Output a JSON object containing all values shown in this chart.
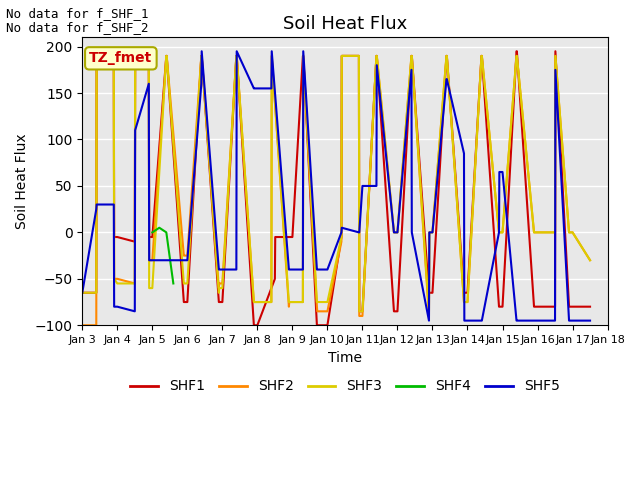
{
  "title": "Soil Heat Flux",
  "ylabel": "Soil Heat Flux",
  "xlabel": "Time",
  "ylim": [
    -100,
    210
  ],
  "yticks": [
    -100,
    -50,
    0,
    50,
    100,
    150,
    200
  ],
  "bg_color": "#e8e8e8",
  "annotations": [
    "No data for f_SHF_1",
    "No data for f_SHF_2"
  ],
  "legend_label": "TZ_fmet",
  "series": {
    "SHF1": {
      "color": "#cc0000",
      "x": [
        3.0,
        3.4,
        3.41,
        3.9,
        3.91,
        4.0,
        4.5,
        4.51,
        4.9,
        4.91,
        5.0,
        5.4,
        5.41,
        5.9,
        5.91,
        6.0,
        6.4,
        6.41,
        6.9,
        6.91,
        7.0,
        7.4,
        7.41,
        7.9,
        7.91,
        8.0,
        8.5,
        8.51,
        8.9,
        8.91,
        9.0,
        9.3,
        9.31,
        9.7,
        9.71,
        10.0,
        10.4,
        10.41,
        10.9,
        10.91,
        11.0,
        11.4,
        11.41,
        11.9,
        11.91,
        12.0,
        12.4,
        12.41,
        12.9,
        12.91,
        13.0,
        13.4,
        13.41,
        13.9,
        13.91,
        14.0,
        14.4,
        14.41,
        14.9,
        14.91,
        15.0,
        15.4,
        15.41,
        15.9,
        15.91,
        16.0,
        16.5,
        16.51,
        16.9,
        16.91,
        17.0,
        17.5
      ],
      "y": [
        -65,
        -65,
        190,
        190,
        -5,
        -5,
        -10,
        190,
        190,
        -5,
        -5,
        190,
        190,
        -75,
        -75,
        -75,
        190,
        190,
        -75,
        -75,
        -75,
        190,
        190,
        -100,
        -100,
        -100,
        -50,
        -5,
        -5,
        -5,
        -5,
        190,
        190,
        -100,
        -100,
        -100,
        -5,
        190,
        190,
        -85,
        -85,
        190,
        190,
        -85,
        -85,
        -85,
        190,
        190,
        -65,
        -65,
        -65,
        190,
        190,
        -65,
        -65,
        -65,
        190,
        190,
        -80,
        -80,
        -80,
        195,
        195,
        -80,
        -80,
        -80,
        -80,
        195,
        -80,
        -80,
        -80,
        -80
      ]
    },
    "SHF2": {
      "color": "#ff8800",
      "x": [
        3.0,
        3.4,
        3.41,
        3.9,
        3.91,
        4.0,
        4.5,
        4.51,
        4.9,
        4.91,
        5.0,
        5.4,
        5.41,
        5.9,
        5.91,
        6.0,
        6.4,
        6.41,
        6.9,
        6.91,
        7.0,
        7.4,
        7.41,
        7.9,
        7.91,
        8.0,
        8.4,
        8.41,
        8.9,
        8.91,
        9.0,
        9.3,
        9.31,
        9.7,
        9.71,
        10.0,
        10.4,
        10.41,
        10.9,
        10.91,
        11.0,
        11.4,
        11.41,
        11.9,
        11.91,
        12.0,
        12.4,
        12.41,
        12.9,
        12.91,
        13.0,
        13.4,
        13.41,
        13.9,
        13.91,
        14.0,
        14.4,
        14.41,
        14.9,
        14.91,
        15.0,
        15.4,
        15.41,
        15.9,
        15.91,
        16.0,
        16.5,
        16.51,
        16.9,
        16.91,
        17.0,
        17.5
      ],
      "y": [
        -100,
        -100,
        190,
        190,
        -50,
        -50,
        -55,
        190,
        190,
        -30,
        -30,
        190,
        190,
        -25,
        -25,
        -25,
        190,
        190,
        -60,
        -55,
        -55,
        190,
        190,
        -75,
        -75,
        -75,
        -75,
        190,
        -80,
        -75,
        -75,
        -75,
        190,
        -80,
        -85,
        -85,
        -10,
        190,
        190,
        -90,
        -90,
        190,
        190,
        0,
        0,
        0,
        190,
        190,
        -90,
        0,
        0,
        190,
        190,
        -75,
        -75,
        -75,
        190,
        190,
        0,
        0,
        0,
        190,
        190,
        0,
        0,
        0,
        0,
        190,
        0,
        0,
        0,
        -30
      ]
    },
    "SHF3": {
      "color": "#ddcc00",
      "x": [
        3.0,
        3.4,
        3.41,
        3.9,
        3.91,
        4.0,
        4.5,
        4.51,
        4.9,
        4.91,
        5.0,
        5.4,
        5.41,
        5.9,
        5.91,
        6.0,
        6.4,
        6.41,
        6.9,
        6.91,
        7.0,
        7.4,
        7.41,
        7.9,
        7.91,
        8.0,
        8.4,
        8.41,
        8.9,
        8.91,
        9.0,
        9.3,
        9.31,
        9.7,
        9.71,
        10.0,
        10.4,
        10.41,
        10.9,
        10.91,
        11.0,
        11.4,
        11.41,
        11.9,
        11.91,
        12.0,
        12.4,
        12.41,
        12.9,
        12.91,
        13.0,
        13.4,
        13.41,
        13.9,
        13.91,
        14.0,
        14.4,
        14.41,
        14.9,
        14.91,
        15.0,
        15.4,
        15.41,
        15.9,
        15.91,
        16.0,
        16.5,
        16.51,
        16.9,
        16.91,
        17.0,
        17.5
      ],
      "y": [
        -65,
        -65,
        190,
        190,
        -50,
        -55,
        -55,
        190,
        190,
        -60,
        -60,
        190,
        190,
        -55,
        -55,
        -55,
        190,
        190,
        -65,
        -60,
        -60,
        190,
        190,
        -75,
        -75,
        -75,
        -75,
        190,
        -75,
        -75,
        -75,
        -75,
        190,
        -75,
        -75,
        -75,
        -5,
        190,
        190,
        -85,
        -85,
        190,
        190,
        0,
        0,
        0,
        190,
        190,
        -85,
        0,
        0,
        190,
        190,
        -75,
        -75,
        -75,
        190,
        190,
        0,
        0,
        0,
        190,
        190,
        0,
        0,
        0,
        0,
        190,
        0,
        0,
        0,
        -30
      ]
    },
    "SHF4": {
      "color": "#00bb00",
      "x": [
        5.0,
        5.2,
        5.4,
        5.6
      ],
      "y": [
        0,
        5,
        0,
        -55
      ]
    },
    "SHF5": {
      "color": "#0000cc",
      "x": [
        3.0,
        3.4,
        3.41,
        3.9,
        3.91,
        4.0,
        4.5,
        4.51,
        4.9,
        4.91,
        5.0,
        5.4,
        5.41,
        5.9,
        5.91,
        6.0,
        6.4,
        6.41,
        6.9,
        6.91,
        7.0,
        7.4,
        7.41,
        7.9,
        7.91,
        8.0,
        8.4,
        8.41,
        8.9,
        8.91,
        9.0,
        9.3,
        9.31,
        9.7,
        9.71,
        10.0,
        10.4,
        10.41,
        10.9,
        10.91,
        11.0,
        11.4,
        11.41,
        11.9,
        11.91,
        12.0,
        12.4,
        12.41,
        12.9,
        12.91,
        13.0,
        13.4,
        13.41,
        13.9,
        13.91,
        14.0,
        14.4,
        14.41,
        14.9,
        14.91,
        15.0,
        15.4,
        15.41,
        15.9,
        15.91,
        16.0,
        16.5,
        16.51,
        16.9,
        16.91,
        17.0,
        17.5
      ],
      "y": [
        -65,
        25,
        30,
        30,
        -80,
        -80,
        -85,
        110,
        160,
        -30,
        -30,
        -30,
        -30,
        -30,
        -30,
        -30,
        160,
        195,
        -40,
        -40,
        -40,
        -40,
        195,
        155,
        155,
        155,
        155,
        195,
        -40,
        -40,
        -40,
        -40,
        195,
        -40,
        -40,
        -40,
        0,
        5,
        0,
        0,
        50,
        50,
        180,
        0,
        0,
        0,
        175,
        0,
        -95,
        0,
        0,
        165,
        165,
        85,
        -95,
        -95,
        -95,
        -95,
        0,
        65,
        65,
        -95,
        -95,
        -95,
        -95,
        -95,
        -95,
        175,
        -95,
        -95,
        -95,
        -95
      ]
    }
  },
  "xtick_locs": [
    3,
    4,
    5,
    6,
    7,
    8,
    9,
    10,
    11,
    12,
    13,
    14,
    15,
    16,
    17,
    18
  ],
  "xtick_labels": [
    "Jan 3",
    "Jan 4",
    "Jan 5",
    "Jan 6",
    "Jan 7",
    "Jan 8",
    "Jan 9",
    "Jan 10",
    "Jan 11",
    "Jan 12",
    "Jan 13",
    "Jan 14",
    "Jan 15",
    "Jan 16",
    "Jan 17",
    "Jan 18"
  ]
}
